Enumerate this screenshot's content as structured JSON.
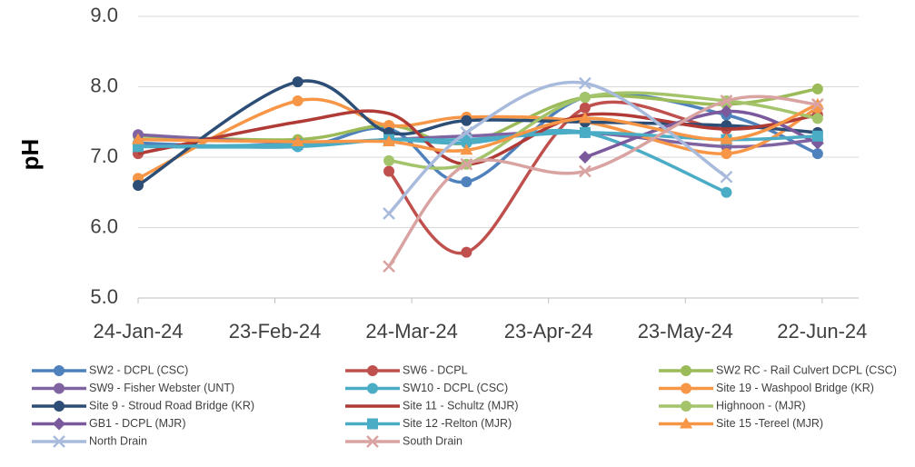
{
  "chart_data": {
    "type": "line",
    "y_label": "pH",
    "x": [
      "2024-01-24",
      "2024-02-28",
      "2024-03-19",
      "2024-04-05",
      "2024-05-01",
      "2024-06-01",
      "2024-06-21"
    ],
    "xlim": [
      "2024-01-24",
      "2024-06-30"
    ],
    "xticks": [
      {
        "value": "2024-01-24",
        "label": "24-Jan-24"
      },
      {
        "value": "2024-02-23",
        "label": "23-Feb-24"
      },
      {
        "value": "2024-03-24",
        "label": "24-Mar-24"
      },
      {
        "value": "2024-04-23",
        "label": "23-Apr-24"
      },
      {
        "value": "2024-05-23",
        "label": "23-May-24"
      },
      {
        "value": "2024-06-22",
        "label": "22-Jun-24"
      }
    ],
    "ylim": [
      5,
      9
    ],
    "yticks": [
      {
        "value": 5,
        "label": "5.0"
      },
      {
        "value": 6,
        "label": "6.0"
      },
      {
        "value": 7,
        "label": "7.0"
      },
      {
        "value": 8,
        "label": "8.0"
      },
      {
        "value": 9,
        "label": "9.0"
      }
    ],
    "grid": true,
    "smooth": true,
    "legend": "bottom",
    "series": [
      {
        "name": "SW2 - DCPL (CSC)",
        "color": "#4f81bd",
        "marker": "circle",
        "values": [
          7.2,
          7.15,
          7.4,
          6.65,
          7.85,
          7.6,
          7.05
        ]
      },
      {
        "name": "SW6 - DCPL",
        "color": "#c0504d",
        "marker": "circle",
        "values": [
          7.05,
          null,
          6.8,
          5.65,
          7.7,
          7.4,
          7.6
        ]
      },
      {
        "name": "SW2 RC - Rail Culvert DCPL (CSC)",
        "color": "#9bbb59",
        "marker": "circle",
        "values": [
          7.3,
          7.25,
          7.45,
          7.2,
          7.85,
          7.75,
          7.97
        ]
      },
      {
        "name": "SW9 - Fisher Webster (UNT)",
        "color": "#8064a2",
        "marker": "circle",
        "values": [
          7.32,
          7.2,
          7.25,
          7.3,
          7.35,
          7.15,
          7.25
        ]
      },
      {
        "name": "SW10 - DCPL (CSC)",
        "color": "#4bacc6",
        "marker": "circle",
        "values": [
          7.15,
          7.15,
          7.25,
          7.2,
          7.35,
          6.5,
          null
        ]
      },
      {
        "name": "Site 19 - Washpool Bridge (KR)",
        "color": "#f79646",
        "marker": "circle",
        "values": [
          6.7,
          7.8,
          7.45,
          7.57,
          7.5,
          7.05,
          7.7
        ]
      },
      {
        "name": "Site 9 - Stroud Road Bridge (KR)",
        "color": "#2c4d75",
        "marker": "circle",
        "values": [
          6.6,
          8.07,
          7.35,
          7.52,
          7.5,
          7.45,
          7.35
        ]
      },
      {
        "name": "Site 11 - Schultz (MJR)",
        "color": "#b03a36",
        "marker": "none",
        "values": [
          7.05,
          7.5,
          7.62,
          6.9,
          7.6,
          7.4,
          7.6
        ]
      },
      {
        "name": "Highnoon - (MJR)",
        "color": "#a3c46a",
        "marker": "circle",
        "values": [
          null,
          null,
          6.95,
          6.9,
          7.85,
          7.8,
          7.55
        ]
      },
      {
        "name": "GB1 - DCPL (MJR)",
        "color": "#7a5a9c",
        "marker": "diamond",
        "values": [
          null,
          null,
          null,
          null,
          7.0,
          7.65,
          7.2
        ]
      },
      {
        "name": "Site 12 -Relton (MJR)",
        "color": "#4bacc6",
        "marker": "square",
        "values": [
          7.15,
          7.18,
          7.25,
          7.25,
          7.35,
          7.25,
          7.3
        ]
      },
      {
        "name": "Site 15 -Tereel (MJR)",
        "color": "#f79646",
        "marker": "triangle",
        "values": [
          7.25,
          7.22,
          7.22,
          7.1,
          7.55,
          7.25,
          7.75
        ]
      },
      {
        "name": "North Drain",
        "color": "#a9bbdc",
        "marker": "x",
        "values": [
          null,
          null,
          6.2,
          7.35,
          8.05,
          6.72,
          null
        ]
      },
      {
        "name": "South Drain",
        "color": "#d9a3a2",
        "marker": "x",
        "values": [
          null,
          null,
          5.45,
          6.9,
          6.8,
          7.8,
          7.75
        ]
      }
    ]
  }
}
